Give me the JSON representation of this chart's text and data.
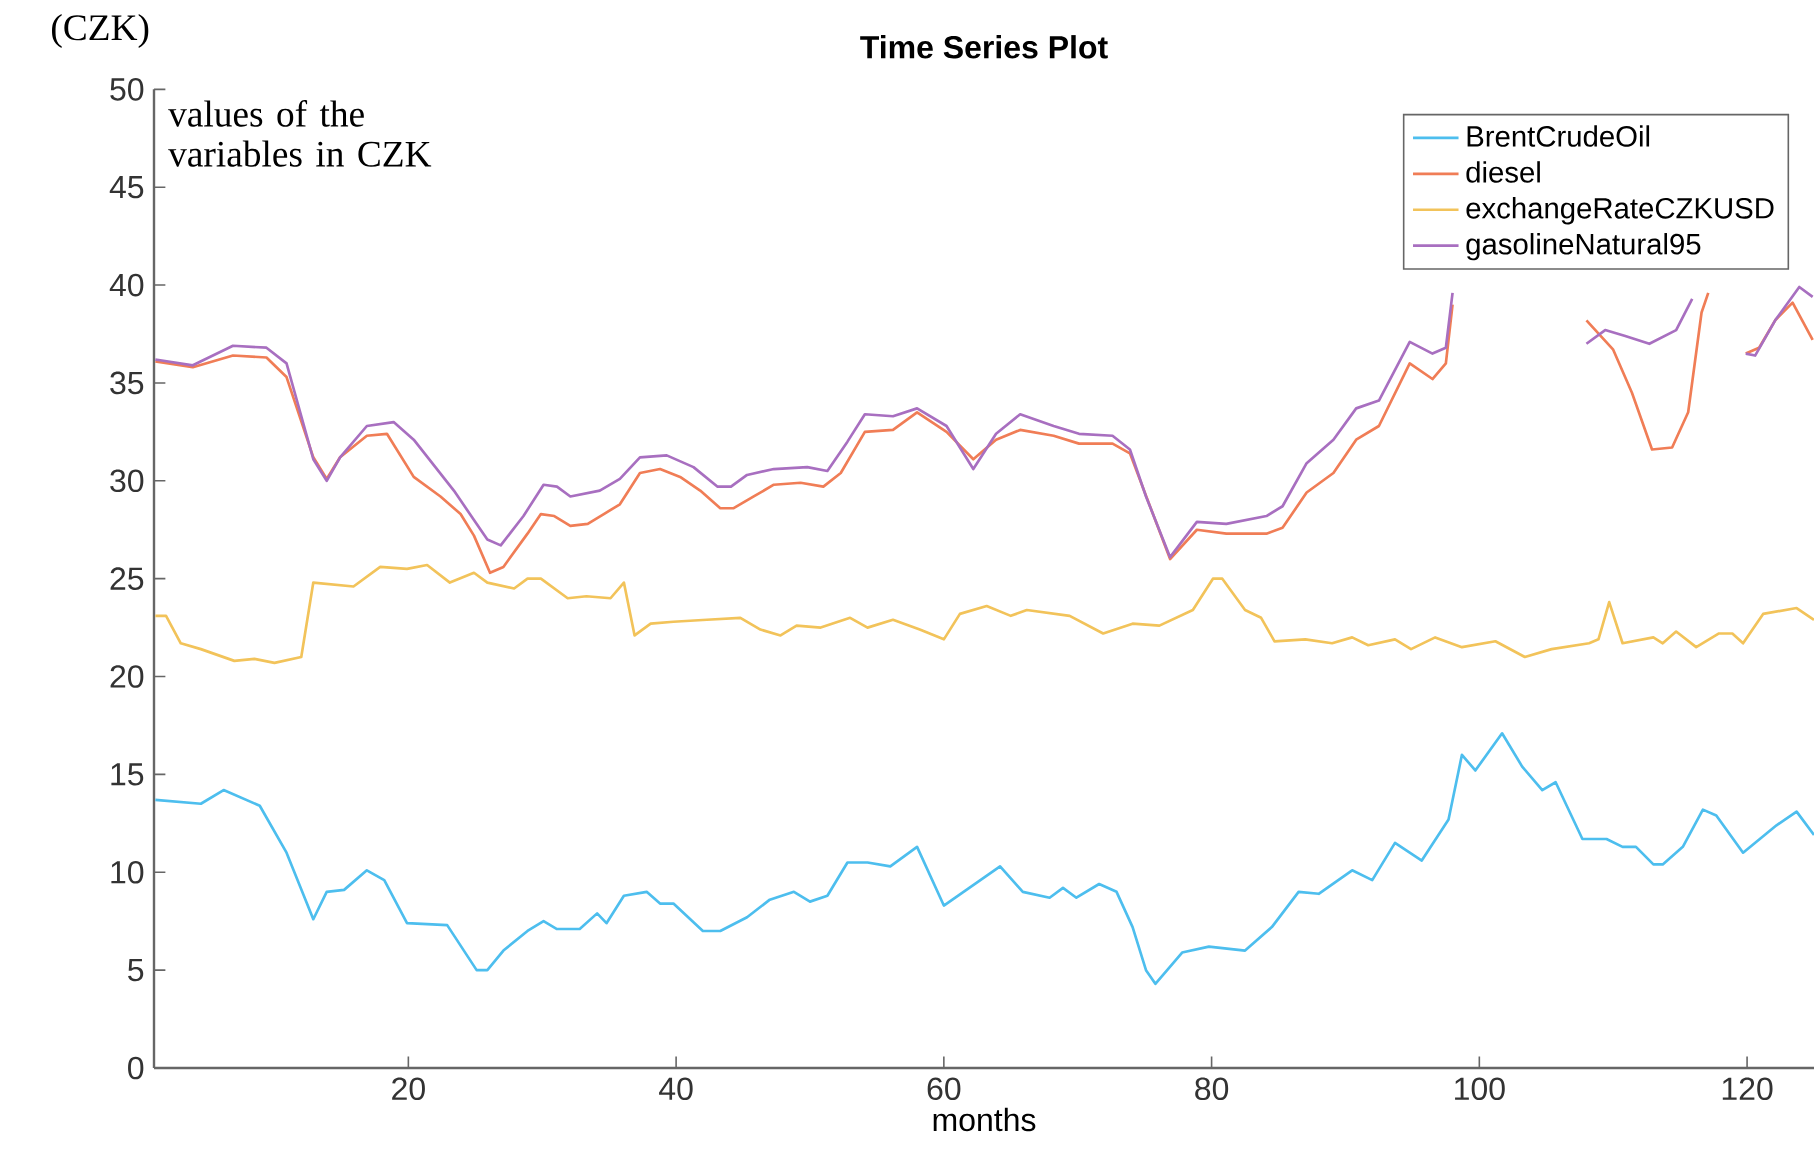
{
  "chart_data": {
    "type": "line",
    "title": "Time Series Plot",
    "xlabel": "months",
    "ylabel": "(CZK)",
    "annotations": [
      "values of the variables in CZK"
    ],
    "xlim": [
      1,
      125
    ],
    "xticks": [
      20,
      40,
      60,
      80,
      100,
      120
    ],
    "ylim": [
      0,
      50
    ],
    "yticks": [
      0,
      5,
      10,
      15,
      20,
      25,
      30,
      35,
      40,
      45,
      50
    ],
    "legend": "top right",
    "marker": "none",
    "series": [
      {
        "name": "BrentCrudeOil",
        "color": "#4dbeee",
        "x": [
          1.1,
          4.5,
          6.2,
          8.9,
          10.9,
          12.9,
          13.9,
          15.2,
          16.9,
          18.2,
          19.9,
          22.9,
          25.1,
          25.9,
          27.1,
          28.9,
          30.1,
          31.1,
          32.8,
          34.1,
          34.8,
          36.1,
          37.8,
          38.8,
          39.8,
          42.0,
          43.3,
          45.3,
          47.0,
          48.8,
          50.0,
          51.3,
          52.8,
          54.3,
          56.0,
          58.0,
          60.0,
          64.2,
          65.9,
          67.9,
          68.9,
          69.9,
          71.6,
          72.9,
          74.1,
          75.1,
          75.8,
          77.8,
          79.8,
          82.5,
          84.5,
          86.5,
          88.0,
          90.5,
          92.0,
          93.7,
          95.7,
          97.7,
          98.7,
          99.7,
          101.7,
          103.2,
          104.7,
          105.7,
          107.7,
          109.5,
          110.7,
          111.7,
          113.0,
          113.7,
          115.2,
          116.7,
          117.7,
          119.7,
          122.2,
          123.7,
          125.0
        ],
        "values": [
          13.7,
          13.5,
          14.2,
          13.4,
          11,
          7.6,
          9,
          9.1,
          10.1,
          9.6,
          7.4,
          7.3,
          5,
          5,
          6,
          7.0,
          7.5,
          7.1,
          7.1,
          7.9,
          7.4,
          8.8,
          9,
          8.4,
          8.4,
          7,
          7,
          7.7,
          8.6,
          9.0,
          8.5,
          8.8,
          10.5,
          10.5,
          10.3,
          11.3,
          8.3,
          10.3,
          9.0,
          8.7,
          9.2,
          8.7,
          9.4,
          9.0,
          7.2,
          5.0,
          4.3,
          5.9,
          6.2,
          6.0,
          7.2,
          9.0,
          8.9,
          10.1,
          9.6,
          11.5,
          10.6,
          12.7,
          16.0,
          15.2,
          17.1,
          15.4,
          14.2,
          14.6,
          11.7,
          11.7,
          11.3,
          11.3,
          10.4,
          10.4,
          11.3,
          13.2,
          12.9,
          11.0,
          12.4,
          13.1,
          11.9
        ]
      },
      {
        "name": "diesel",
        "color": "#f07d56",
        "x": [
          1.1,
          3.9,
          6.9,
          9.4,
          10.9,
          12.9,
          13.9,
          14.9,
          16.9,
          18.4,
          20.4,
          22.4,
          23.9,
          24.9,
          26.1,
          27.1,
          28.9,
          29.9,
          30.9,
          32.1,
          33.4,
          34.6,
          35.8,
          37.3,
          38.8,
          40.3,
          41.8,
          43.3,
          44.3,
          45.8,
          47.3,
          49.3,
          51.0,
          52.3,
          54.1,
          56.2,
          58.0,
          60.2,
          62.2,
          63.9,
          65.7,
          68.2,
          70.1,
          72.6,
          73.9,
          76.9,
          78.9,
          81.1,
          84.1,
          85.3,
          87.1,
          89.1,
          90.8,
          92.5,
          94.8,
          96.5,
          97.5,
          98.0,
          103,
          108.0,
          110.0,
          111.4,
          112.9,
          114.4,
          115.6,
          116.6,
          117.1,
          118.5,
          119.9,
          120.9,
          122.1,
          123.4,
          124.9
        ],
        "values": [
          36.1,
          35.8,
          36.4,
          36.3,
          35.3,
          31.2,
          30.1,
          31.2,
          32.3,
          32.4,
          30.2,
          29.2,
          28.3,
          27.2,
          25.3,
          25.6,
          27.3,
          28.3,
          28.2,
          27.7,
          27.8,
          28.3,
          28.8,
          30.4,
          30.6,
          30.2,
          29.5,
          28.6,
          28.6,
          29.2,
          29.8,
          29.9,
          29.7,
          30.4,
          32.5,
          32.6,
          33.5,
          32.5,
          31.1,
          32.1,
          32.6,
          32.3,
          31.9,
          31.9,
          31.4,
          26.0,
          27.5,
          27.3,
          27.3,
          27.6,
          29.4,
          30.4,
          32.1,
          32.8,
          36.0,
          35.2,
          36.0,
          39.0,
          null,
          38.2,
          36.7,
          34.5,
          31.6,
          31.7,
          33.5,
          38.6,
          39.6,
          null,
          36.5,
          36.8,
          38.2,
          39.1,
          37.2
        ]
      },
      {
        "name": "exchangeRateCZKUSD",
        "color": "#f2c35a",
        "x": [
          1.1,
          1.9,
          3.0,
          4.5,
          7.0,
          8.5,
          10.0,
          12.0,
          12.9,
          15.9,
          17.9,
          19.9,
          21.4,
          23.1,
          24.9,
          25.9,
          27.9,
          28.9,
          29.9,
          31.9,
          33.3,
          35.1,
          36.1,
          36.9,
          38.1,
          39.8,
          42.3,
          44.8,
          46.3,
          47.8,
          49.0,
          50.8,
          53.0,
          54.3,
          56.2,
          58.2,
          60.0,
          61.2,
          63.2,
          65.0,
          66.2,
          69.4,
          71.9,
          74.1,
          76.1,
          78.6,
          80.1,
          80.8,
          82.5,
          83.7,
          84.7,
          87.0,
          89.0,
          90.5,
          91.7,
          93.7,
          94.9,
          96.7,
          98.7,
          101.2,
          103.4,
          105.4,
          108.2,
          108.9,
          109.7,
          110.7,
          113.0,
          113.7,
          114.7,
          116.2,
          117.9,
          118.9,
          119.7,
          121.2,
          123.7,
          125.0
        ],
        "values": [
          23.1,
          23.1,
          21.7,
          21.4,
          20.8,
          20.9,
          20.7,
          21.0,
          24.8,
          24.6,
          25.6,
          25.5,
          25.7,
          24.8,
          25.3,
          24.8,
          24.5,
          25.0,
          25.0,
          24.0,
          24.1,
          24.0,
          24.8,
          22.1,
          22.7,
          22.8,
          22.9,
          23.0,
          22.4,
          22.1,
          22.6,
          22.5,
          23.0,
          22.5,
          22.9,
          22.4,
          21.9,
          23.2,
          23.6,
          23.1,
          23.4,
          23.1,
          22.2,
          22.7,
          22.6,
          23.4,
          25.0,
          25.0,
          23.4,
          23.0,
          21.8,
          21.9,
          21.7,
          22.0,
          21.6,
          21.9,
          21.4,
          22.0,
          21.5,
          21.8,
          21.0,
          21.4,
          21.7,
          21.9,
          23.8,
          21.7,
          22.0,
          21.7,
          22.3,
          21.5,
          22.2,
          22.2,
          21.7,
          23.2,
          23.5,
          22.9
        ]
      },
      {
        "name": "gasolineNatural95",
        "color": "#a86fc0",
        "x": [
          1.1,
          3.9,
          6.9,
          9.4,
          10.9,
          12.9,
          13.9,
          14.9,
          16.9,
          18.9,
          20.4,
          23.4,
          24.9,
          25.9,
          26.9,
          28.6,
          30.1,
          31.1,
          32.1,
          34.3,
          35.8,
          37.3,
          39.3,
          41.3,
          43.1,
          44.1,
          45.3,
          47.3,
          49.8,
          51.3,
          52.8,
          54.1,
          56.2,
          58.0,
          60.2,
          62.2,
          63.9,
          65.7,
          68.2,
          70.1,
          72.6,
          73.9,
          75.1,
          76.9,
          78.9,
          81.1,
          84.1,
          85.3,
          87.1,
          89.1,
          90.8,
          92.5,
          94.8,
          96.5,
          97.5,
          98.0,
          103,
          108.0,
          109.4,
          110.9,
          112.7,
          114.7,
          115.9,
          117.5,
          119.9,
          120.6,
          122.1,
          123.9,
          124.9
        ],
        "values": [
          36.2,
          35.9,
          36.9,
          36.8,
          36.0,
          31.1,
          30.0,
          31.2,
          32.8,
          33.0,
          32.1,
          29.5,
          28.0,
          27.0,
          26.7,
          28.2,
          29.8,
          29.7,
          29.2,
          29.5,
          30.1,
          31.2,
          31.3,
          30.7,
          29.7,
          29.7,
          30.3,
          30.6,
          30.7,
          30.5,
          32.0,
          33.4,
          33.3,
          33.7,
          32.8,
          30.6,
          32.4,
          33.4,
          32.8,
          32.4,
          32.3,
          31.6,
          29.2,
          26.1,
          27.9,
          27.8,
          28.2,
          28.7,
          30.9,
          32.1,
          33.7,
          34.1,
          37.1,
          36.5,
          36.8,
          39.6,
          null,
          37.0,
          37.7,
          37.4,
          37.0,
          37.7,
          39.3,
          null,
          36.5,
          36.4,
          38.2,
          39.9,
          39.4
        ]
      }
    ]
  }
}
